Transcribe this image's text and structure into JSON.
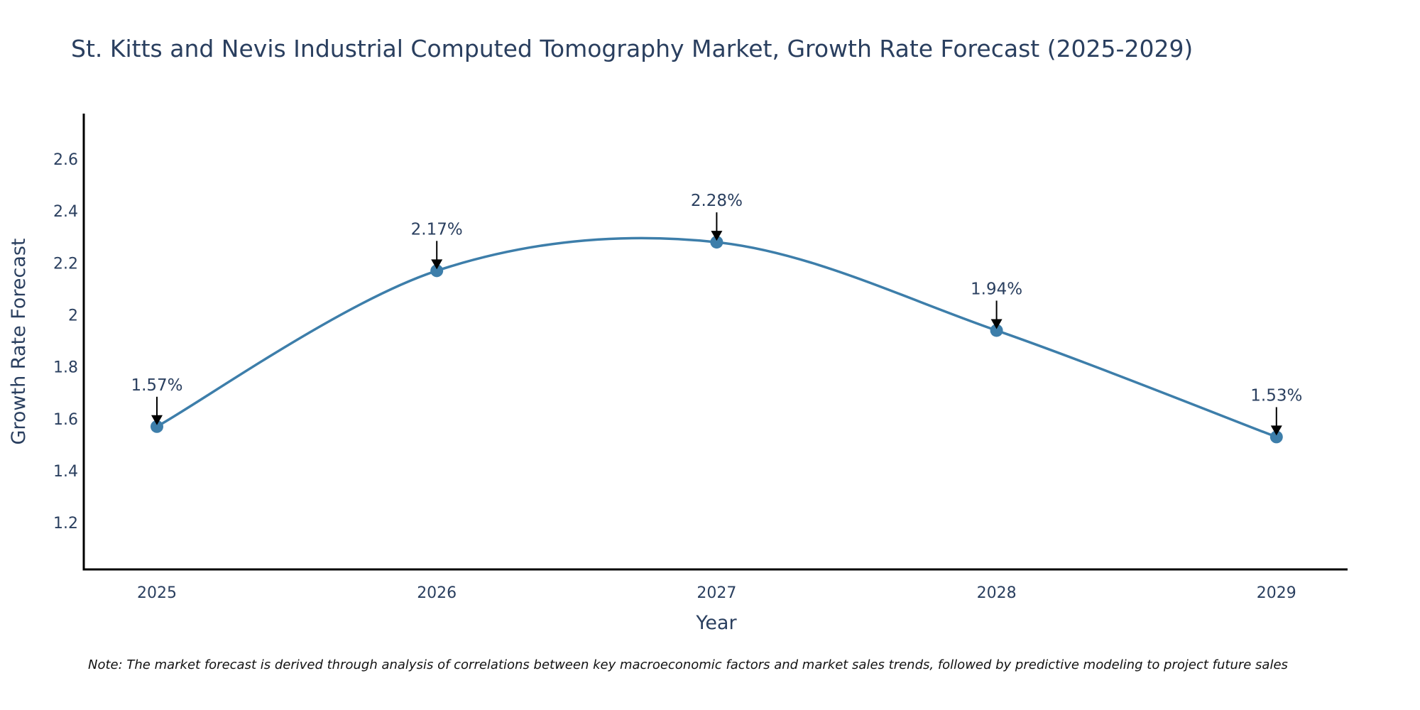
{
  "chart_data": {
    "type": "line",
    "title": "St. Kitts and Nevis Industrial Computed Tomography Market, Growth Rate Forecast (2025-2029)",
    "xlabel": "Year",
    "ylabel": "Growth Rate Forecast",
    "categories": [
      "2025",
      "2026",
      "2027",
      "2028",
      "2029"
    ],
    "series": [
      {
        "name": "Growth Rate Forecast",
        "values": [
          1.57,
          2.17,
          2.28,
          1.94,
          1.53
        ],
        "color": "#3d7eaa",
        "line_shape": "spline"
      }
    ],
    "annotations": [
      "1.57%",
      "2.17%",
      "2.28%",
      "1.94%",
      "1.53%"
    ],
    "yticks": [
      1.2,
      1.4,
      1.6,
      1.8,
      2,
      2.2,
      2.4,
      2.6
    ],
    "ytick_labels": [
      "1.2",
      "1.4",
      "1.6",
      "1.8",
      "2",
      "2.2",
      "2.4",
      "2.6"
    ],
    "ylim": [
      1.02,
      2.775
    ],
    "grid": false,
    "legend": "none",
    "note": "Note: The market forecast is derived through analysis of correlations between key macroeconomic factors and market sales trends, followed by predictive modeling to project future sales"
  }
}
